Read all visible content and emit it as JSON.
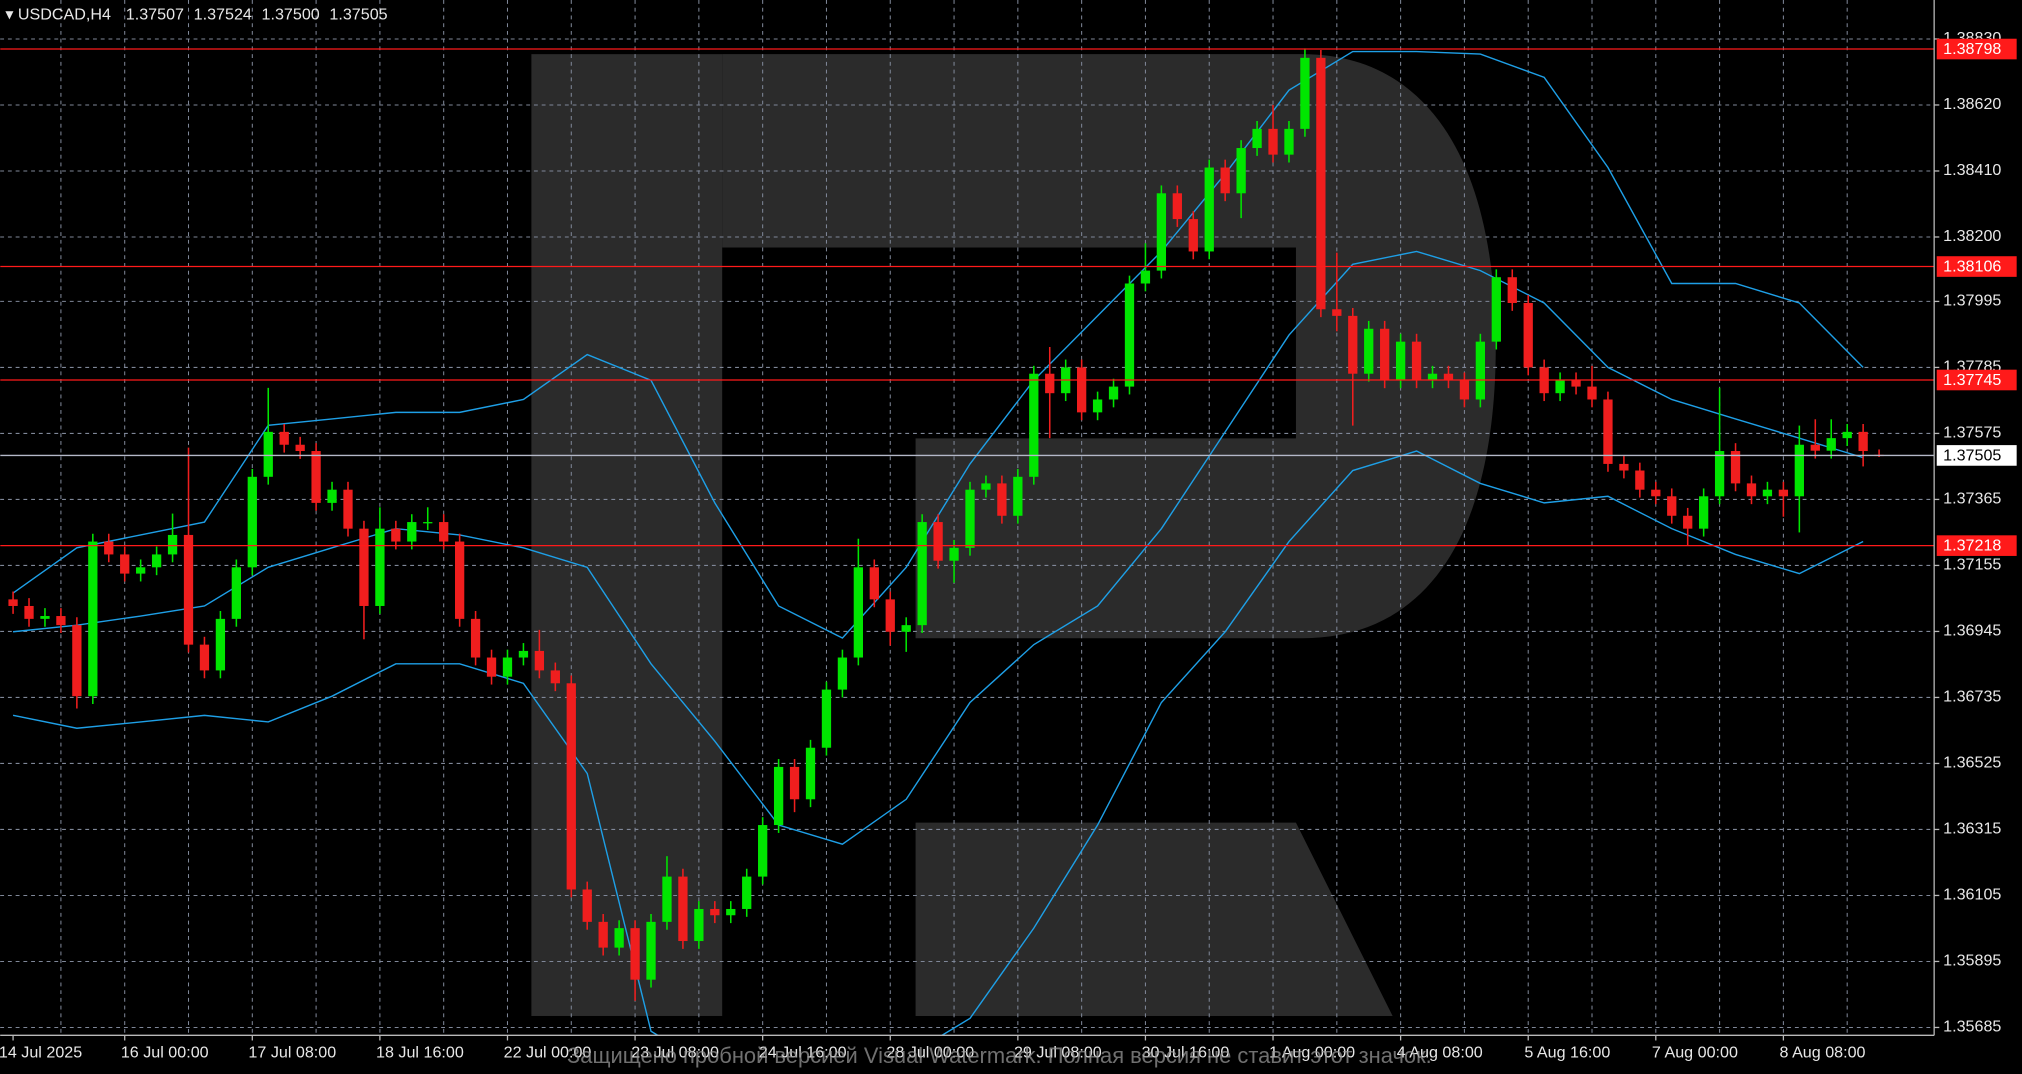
{
  "chart_data": {
    "type": "candlestick",
    "title": "USDCAD,H4",
    "header_values": [
      "1.37507",
      "1.37524",
      "1.37500",
      "1.37505"
    ],
    "watermark": "Защищено пробной версией Visual Watermark. Полная версия не ставит этот значок.",
    "up_color": "#00e600",
    "down_color": "#f01e1e",
    "grid": true,
    "ylim": [
      1.3566,
      1.38954
    ],
    "yticks": [
      {
        "value": 1.3883,
        "label": "1.38830"
      },
      {
        "value": 1.3862,
        "label": "1.38620"
      },
      {
        "value": 1.3841,
        "label": "1.38410"
      },
      {
        "value": 1.382,
        "label": "1.38200"
      },
      1.37995,
      1.37785,
      1.37575,
      1.37365,
      1.37155,
      1.36945,
      1.36735,
      1.36525,
      1.36315,
      1.36105,
      1.35895,
      1.35685
    ],
    "categories": [
      "14 Jul 2025",
      null,
      null,
      null,
      null,
      null,
      null,
      "16 Jul 00:00",
      null,
      null,
      null,
      null,
      null,
      null,
      null,
      "17 Jul 08:00",
      null,
      null,
      null,
      null,
      null,
      null,
      null,
      "18 Jul 16:00",
      null,
      null,
      null,
      null,
      null,
      null,
      null,
      "22 Jul 00:00",
      null,
      null,
      null,
      null,
      null,
      null,
      null,
      "23 Jul 08:00",
      null,
      null,
      null,
      null,
      null,
      null,
      null,
      "24 Jul 16:00",
      null,
      null,
      null,
      null,
      null,
      null,
      null,
      "28 Jul 00:00",
      null,
      null,
      null,
      null,
      null,
      null,
      null,
      "29 Jul 08:00",
      null,
      null,
      null,
      null,
      null,
      null,
      null,
      "30 Jul 16:00",
      null,
      null,
      null,
      null,
      null,
      null,
      null,
      "1 Aug 00:00",
      null,
      null,
      null,
      null,
      null,
      null,
      null,
      "4 Aug 08:00",
      null,
      null,
      null,
      null,
      null,
      null,
      null,
      "5 Aug 16:00",
      null,
      null,
      null,
      null,
      null,
      null,
      null,
      "7 Aug 00:00",
      null,
      null,
      null,
      null,
      null,
      null,
      null,
      "8 Aug 08:00",
      null,
      null,
      null,
      null,
      null,
      null
    ],
    "open": [
      1.37047,
      1.37026,
      1.36985,
      1.36994,
      1.36965,
      1.36739,
      1.37231,
      1.3719,
      1.37129,
      1.37149,
      1.3719,
      1.37252,
      1.36903,
      1.36821,
      1.36985,
      1.37149,
      1.37437,
      1.3758,
      1.37539,
      1.37519,
      1.37354,
      1.37396,
      1.37272,
      1.37026,
      1.37272,
      1.37231,
      1.37293,
      1.37293,
      1.37231,
      1.36985,
      1.36862,
      1.36801,
      1.36862,
      1.36883,
      1.36821,
      1.3678,
      1.36124,
      1.36021,
      1.35939,
      1.36001,
      1.35837,
      1.36021,
      1.36165,
      1.3596,
      1.36062,
      1.36042,
      1.36062,
      1.36165,
      1.36329,
      1.36514,
      1.36411,
      1.36575,
      1.3676,
      1.36862,
      1.37149,
      1.37047,
      1.36944,
      1.36965,
      1.37293,
      1.3717,
      1.37211,
      1.37396,
      1.37416,
      1.37313,
      1.37437,
      1.37765,
      1.37703,
      1.37785,
      1.37642,
      1.37683,
      1.37724,
      1.38052,
      1.38093,
      1.38339,
      1.38257,
      1.38154,
      1.38421,
      1.38339,
      1.38483,
      1.38544,
      1.38462,
      1.38544,
      1.3877,
      1.3797,
      1.37949,
      1.37765,
      1.37908,
      1.37744,
      1.37867,
      1.37744,
      1.37765,
      1.37744,
      1.37683,
      1.37867,
      1.38072,
      1.3799,
      1.37785,
      1.37703,
      1.37744,
      1.37724,
      1.37683,
      1.37478,
      1.37457,
      1.37396,
      1.37375,
      1.37313,
      1.37272,
      1.37375,
      1.37519,
      1.37416,
      1.37375,
      1.37396,
      1.37375,
      1.37539,
      1.3752,
      1.3756,
      1.3758,
      1.37507
    ],
    "high": [
      1.37072,
      1.37051,
      1.37019,
      1.37019,
      1.3699,
      1.37256,
      1.37256,
      1.37215,
      1.37174,
      1.37215,
      1.3732,
      1.3753,
      1.36928,
      1.3701,
      1.37174,
      1.37462,
      1.3772,
      1.37605,
      1.37564,
      1.37544,
      1.37421,
      1.37421,
      1.37297,
      1.3734,
      1.37297,
      1.37318,
      1.3734,
      1.37318,
      1.37256,
      1.3701,
      1.36887,
      1.36887,
      1.36908,
      1.3695,
      1.36846,
      1.36805,
      1.36149,
      1.36046,
      1.36026,
      1.36026,
      1.36046,
      1.3623,
      1.3619,
      1.36087,
      1.36087,
      1.36087,
      1.3619,
      1.36354,
      1.36539,
      1.36539,
      1.366,
      1.36785,
      1.36887,
      1.3724,
      1.37174,
      1.37072,
      1.3699,
      1.37318,
      1.37318,
      1.37236,
      1.37421,
      1.37441,
      1.37441,
      1.37462,
      1.3779,
      1.3785,
      1.3781,
      1.3781,
      1.37708,
      1.37749,
      1.38077,
      1.3818,
      1.38364,
      1.38364,
      1.38282,
      1.38446,
      1.38446,
      1.38508,
      1.38569,
      1.3862,
      1.38569,
      1.388,
      1.38795,
      1.3815,
      1.37974,
      1.37933,
      1.37933,
      1.37892,
      1.37892,
      1.3779,
      1.3779,
      1.37769,
      1.37892,
      1.38097,
      1.38097,
      1.38015,
      1.3781,
      1.37769,
      1.37769,
      1.3779,
      1.37708,
      1.37503,
      1.37482,
      1.37421,
      1.374,
      1.37338,
      1.374,
      1.3772,
      1.37544,
      1.37441,
      1.37421,
      1.37421,
      1.376,
      1.3762,
      1.3762,
      1.37605,
      1.37605,
      1.37524
    ],
    "low": [
      1.37001,
      1.3696,
      1.3696,
      1.3694,
      1.367,
      1.36714,
      1.37165,
      1.37104,
      1.37104,
      1.37124,
      1.37165,
      1.36878,
      1.36796,
      1.36796,
      1.3696,
      1.37124,
      1.37412,
      1.37514,
      1.37494,
      1.37329,
      1.37329,
      1.37247,
      1.3692,
      1.37001,
      1.37206,
      1.37206,
      1.37268,
      1.37206,
      1.3696,
      1.36837,
      1.36776,
      1.36776,
      1.36837,
      1.36796,
      1.36755,
      1.36099,
      1.35996,
      1.35914,
      1.35914,
      1.3577,
      1.35812,
      1.35996,
      1.35935,
      1.35935,
      1.36017,
      1.36017,
      1.36037,
      1.3614,
      1.36304,
      1.3637,
      1.36386,
      1.3655,
      1.36735,
      1.36837,
      1.37022,
      1.369,
      1.3688,
      1.3694,
      1.37145,
      1.371,
      1.37186,
      1.37371,
      1.37288,
      1.37288,
      1.37412,
      1.3756,
      1.37678,
      1.37617,
      1.37617,
      1.37658,
      1.37699,
      1.38027,
      1.38068,
      1.38232,
      1.38129,
      1.38129,
      1.38314,
      1.3826,
      1.38458,
      1.38437,
      1.38437,
      1.38519,
      1.37945,
      1.379,
      1.376,
      1.3774,
      1.37719,
      1.37719,
      1.37719,
      1.37719,
      1.37719,
      1.37658,
      1.37658,
      1.37842,
      1.37965,
      1.3776,
      1.37678,
      1.37678,
      1.37699,
      1.37658,
      1.37453,
      1.37432,
      1.37371,
      1.3735,
      1.37288,
      1.37218,
      1.37247,
      1.3735,
      1.37391,
      1.3735,
      1.3735,
      1.3731,
      1.3726,
      1.37495,
      1.37495,
      1.37535,
      1.3747,
      1.375
    ],
    "close": [
      1.37026,
      1.36985,
      1.36994,
      1.36965,
      1.36739,
      1.37231,
      1.3719,
      1.37129,
      1.37149,
      1.3719,
      1.37252,
      1.36903,
      1.36821,
      1.36985,
      1.37149,
      1.37437,
      1.3758,
      1.37539,
      1.37519,
      1.37354,
      1.37396,
      1.37272,
      1.37026,
      1.37272,
      1.37231,
      1.37293,
      1.37293,
      1.37231,
      1.36985,
      1.36862,
      1.36801,
      1.36862,
      1.36883,
      1.36821,
      1.3678,
      1.36124,
      1.36021,
      1.35939,
      1.36001,
      1.35837,
      1.36021,
      1.36165,
      1.3596,
      1.36062,
      1.36042,
      1.36062,
      1.36165,
      1.36329,
      1.36514,
      1.36411,
      1.36575,
      1.3676,
      1.36862,
      1.37149,
      1.37047,
      1.36944,
      1.36965,
      1.37293,
      1.3717,
      1.37211,
      1.37396,
      1.37416,
      1.37313,
      1.37437,
      1.37765,
      1.37703,
      1.37785,
      1.37642,
      1.37683,
      1.37724,
      1.38052,
      1.38093,
      1.38339,
      1.38257,
      1.38154,
      1.38421,
      1.38339,
      1.38483,
      1.38544,
      1.38462,
      1.38544,
      1.3877,
      1.3797,
      1.37949,
      1.37765,
      1.37908,
      1.37744,
      1.37867,
      1.37744,
      1.37765,
      1.37744,
      1.37683,
      1.37867,
      1.38072,
      1.3799,
      1.37785,
      1.37703,
      1.37744,
      1.37724,
      1.37683,
      1.37478,
      1.37457,
      1.37396,
      1.37375,
      1.37313,
      1.37272,
      1.37375,
      1.37519,
      1.37416,
      1.37375,
      1.37396,
      1.37375,
      1.37539,
      1.3752,
      1.3756,
      1.3758,
      1.37519,
      1.37505
    ],
    "bands": {
      "color": "#1e9fe6",
      "x": [
        0,
        4,
        8,
        12,
        16,
        20,
        24,
        28,
        32,
        36,
        40,
        44,
        48,
        52,
        56,
        60,
        64,
        68,
        72,
        76,
        80,
        84,
        88,
        92,
        96,
        100,
        104,
        108,
        112,
        116
      ],
      "series": [
        {
          "values": [
            1.37067,
            1.37211,
            1.37252,
            1.37293,
            1.37601,
            1.37621,
            1.37642,
            1.37642,
            1.37683,
            1.37826,
            1.37744,
            1.37354,
            1.37026,
            1.36924,
            1.37149,
            1.37478,
            1.37744,
            1.37949,
            1.38154,
            1.38401,
            1.38667,
            1.3879,
            1.3879,
            1.38782,
            1.38708,
            1.38421,
            1.38052,
            1.38052,
            1.3799,
            1.37785
          ]
        },
        {
          "values": [
            1.36944,
            1.36965,
            1.36994,
            1.37026,
            1.37149,
            1.37211,
            1.37272,
            1.37252,
            1.37211,
            1.37149,
            1.36842,
            1.36596,
            1.36329,
            1.36268,
            1.36411,
            1.36719,
            1.36903,
            1.37026,
            1.37272,
            1.3758,
            1.37888,
            1.38113,
            1.38154,
            1.38093,
            1.3799,
            1.37785,
            1.37683,
            1.37621,
            1.3756,
            1.37498
          ]
        },
        {
          "values": [
            1.36678,
            1.36637,
            1.36657,
            1.36678,
            1.36657,
            1.36739,
            1.36842,
            1.36842,
            1.3678,
            1.36493,
            1.35673,
            1.3555,
            1.35509,
            1.35509,
            1.35591,
            1.35714,
            1.36001,
            1.36329,
            1.36719,
            1.36944,
            1.37231,
            1.37457,
            1.37519,
            1.37416,
            1.37354,
            1.37375,
            1.37272,
            1.3719,
            1.37129,
            1.37231
          ]
        }
      ]
    },
    "levels": [
      {
        "value": 1.38798,
        "color": "#ff1a1a"
      },
      {
        "value": 1.38106,
        "color": "#ff1a1a"
      },
      {
        "value": 1.37745,
        "color": "#ff1a1a"
      },
      {
        "value": 1.37218,
        "color": "#ff1a1a"
      }
    ],
    "current_price": {
      "value": 1.37505,
      "color": "#b4b8c8"
    }
  }
}
